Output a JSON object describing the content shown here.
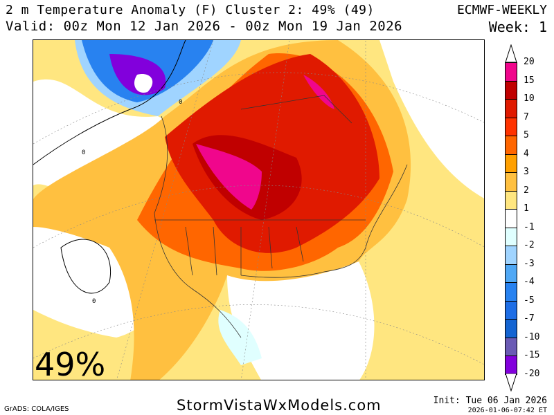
{
  "header": {
    "title": "2 m Temperature Anomaly (F) Cluster 2: 49% (49)",
    "valid": "Valid: 00z Mon 12 Jan 2026 - 00z Mon 19 Jan 2026",
    "model": "ECMWF-WEEKLY",
    "week": "Week: 1"
  },
  "map": {
    "cluster_percent": "49%",
    "contour_label": "0"
  },
  "colorbar": {
    "labels": [
      "20",
      "15",
      "10",
      "7",
      "5",
      "4",
      "3",
      "2",
      "1",
      "-1",
      "-2",
      "-3",
      "-4",
      "-5",
      "-7",
      "-10",
      "-15",
      "-20"
    ],
    "colors": [
      "#f0068c",
      "#c00000",
      "#e01a00",
      "#ff3300",
      "#ff6600",
      "#ffa000",
      "#ffc040",
      "#ffe680",
      "#ffffff",
      "#e0ffff",
      "#a0d4ff",
      "#50a8f5",
      "#2882f0",
      "#1e6ee6",
      "#1464d2",
      "#6a5ab4",
      "#8200dc"
    ]
  },
  "footer": {
    "grads": "GrADS: COLA/IGES",
    "site": "StormVistaWxModels.com",
    "init": "Init: Tue 06 Jan 2026",
    "stamp": "2026-01-06-07:42 ET"
  }
}
